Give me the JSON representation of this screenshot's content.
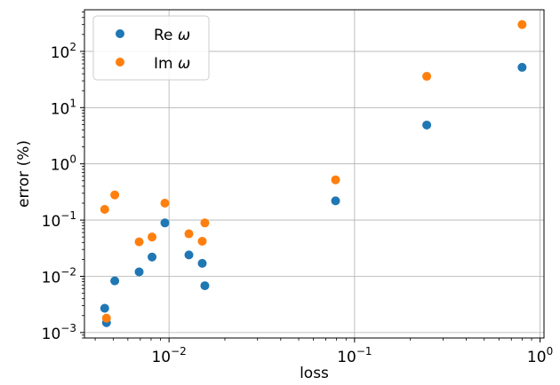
{
  "chart_data": {
    "type": "scatter",
    "xlabel": "loss",
    "ylabel": "error (%)",
    "xscale": "log",
    "yscale": "log",
    "xlim": [
      0.0035,
      1.05
    ],
    "ylim": [
      0.0008,
      550
    ],
    "grid": true,
    "legend_position": "top-left",
    "x_ticks": [
      {
        "value": 0.01,
        "base": "10",
        "exp": "−2"
      },
      {
        "value": 0.1,
        "base": "10",
        "exp": "−1"
      },
      {
        "value": 1,
        "base": "10",
        "exp": "0"
      }
    ],
    "y_ticks": [
      {
        "value": 0.001,
        "base": "10",
        "exp": "−3"
      },
      {
        "value": 0.01,
        "base": "10",
        "exp": "−2"
      },
      {
        "value": 0.1,
        "base": "10",
        "exp": "−1"
      },
      {
        "value": 1,
        "base": "10",
        "exp": "0"
      },
      {
        "value": 10,
        "base": "10",
        "exp": "1"
      },
      {
        "value": 100,
        "base": "10",
        "exp": "2"
      }
    ],
    "series": [
      {
        "name": "Re ω",
        "label_main": "Re ",
        "label_symbol": "ω",
        "color": "#1f77b4",
        "points": [
          {
            "x": 0.0045,
            "y": 0.0027
          },
          {
            "x": 0.0046,
            "y": 0.0015
          },
          {
            "x": 0.0051,
            "y": 0.0083
          },
          {
            "x": 0.0069,
            "y": 0.012
          },
          {
            "x": 0.0081,
            "y": 0.022
          },
          {
            "x": 0.0095,
            "y": 0.089
          },
          {
            "x": 0.0128,
            "y": 0.024
          },
          {
            "x": 0.0151,
            "y": 0.017
          },
          {
            "x": 0.0156,
            "y": 0.0068
          },
          {
            "x": 0.079,
            "y": 0.22
          },
          {
            "x": 0.245,
            "y": 4.9
          },
          {
            "x": 0.8,
            "y": 52
          }
        ]
      },
      {
        "name": "Im ω",
        "label_main": "Im ",
        "label_symbol": "ω",
        "color": "#ff7f0e",
        "points": [
          {
            "x": 0.0045,
            "y": 0.155
          },
          {
            "x": 0.0046,
            "y": 0.0018
          },
          {
            "x": 0.0051,
            "y": 0.28
          },
          {
            "x": 0.0069,
            "y": 0.041
          },
          {
            "x": 0.0081,
            "y": 0.05
          },
          {
            "x": 0.0095,
            "y": 0.2
          },
          {
            "x": 0.0128,
            "y": 0.057
          },
          {
            "x": 0.0151,
            "y": 0.042
          },
          {
            "x": 0.0156,
            "y": 0.089
          },
          {
            "x": 0.079,
            "y": 0.52
          },
          {
            "x": 0.245,
            "y": 36
          },
          {
            "x": 0.8,
            "y": 300
          }
        ]
      }
    ]
  }
}
